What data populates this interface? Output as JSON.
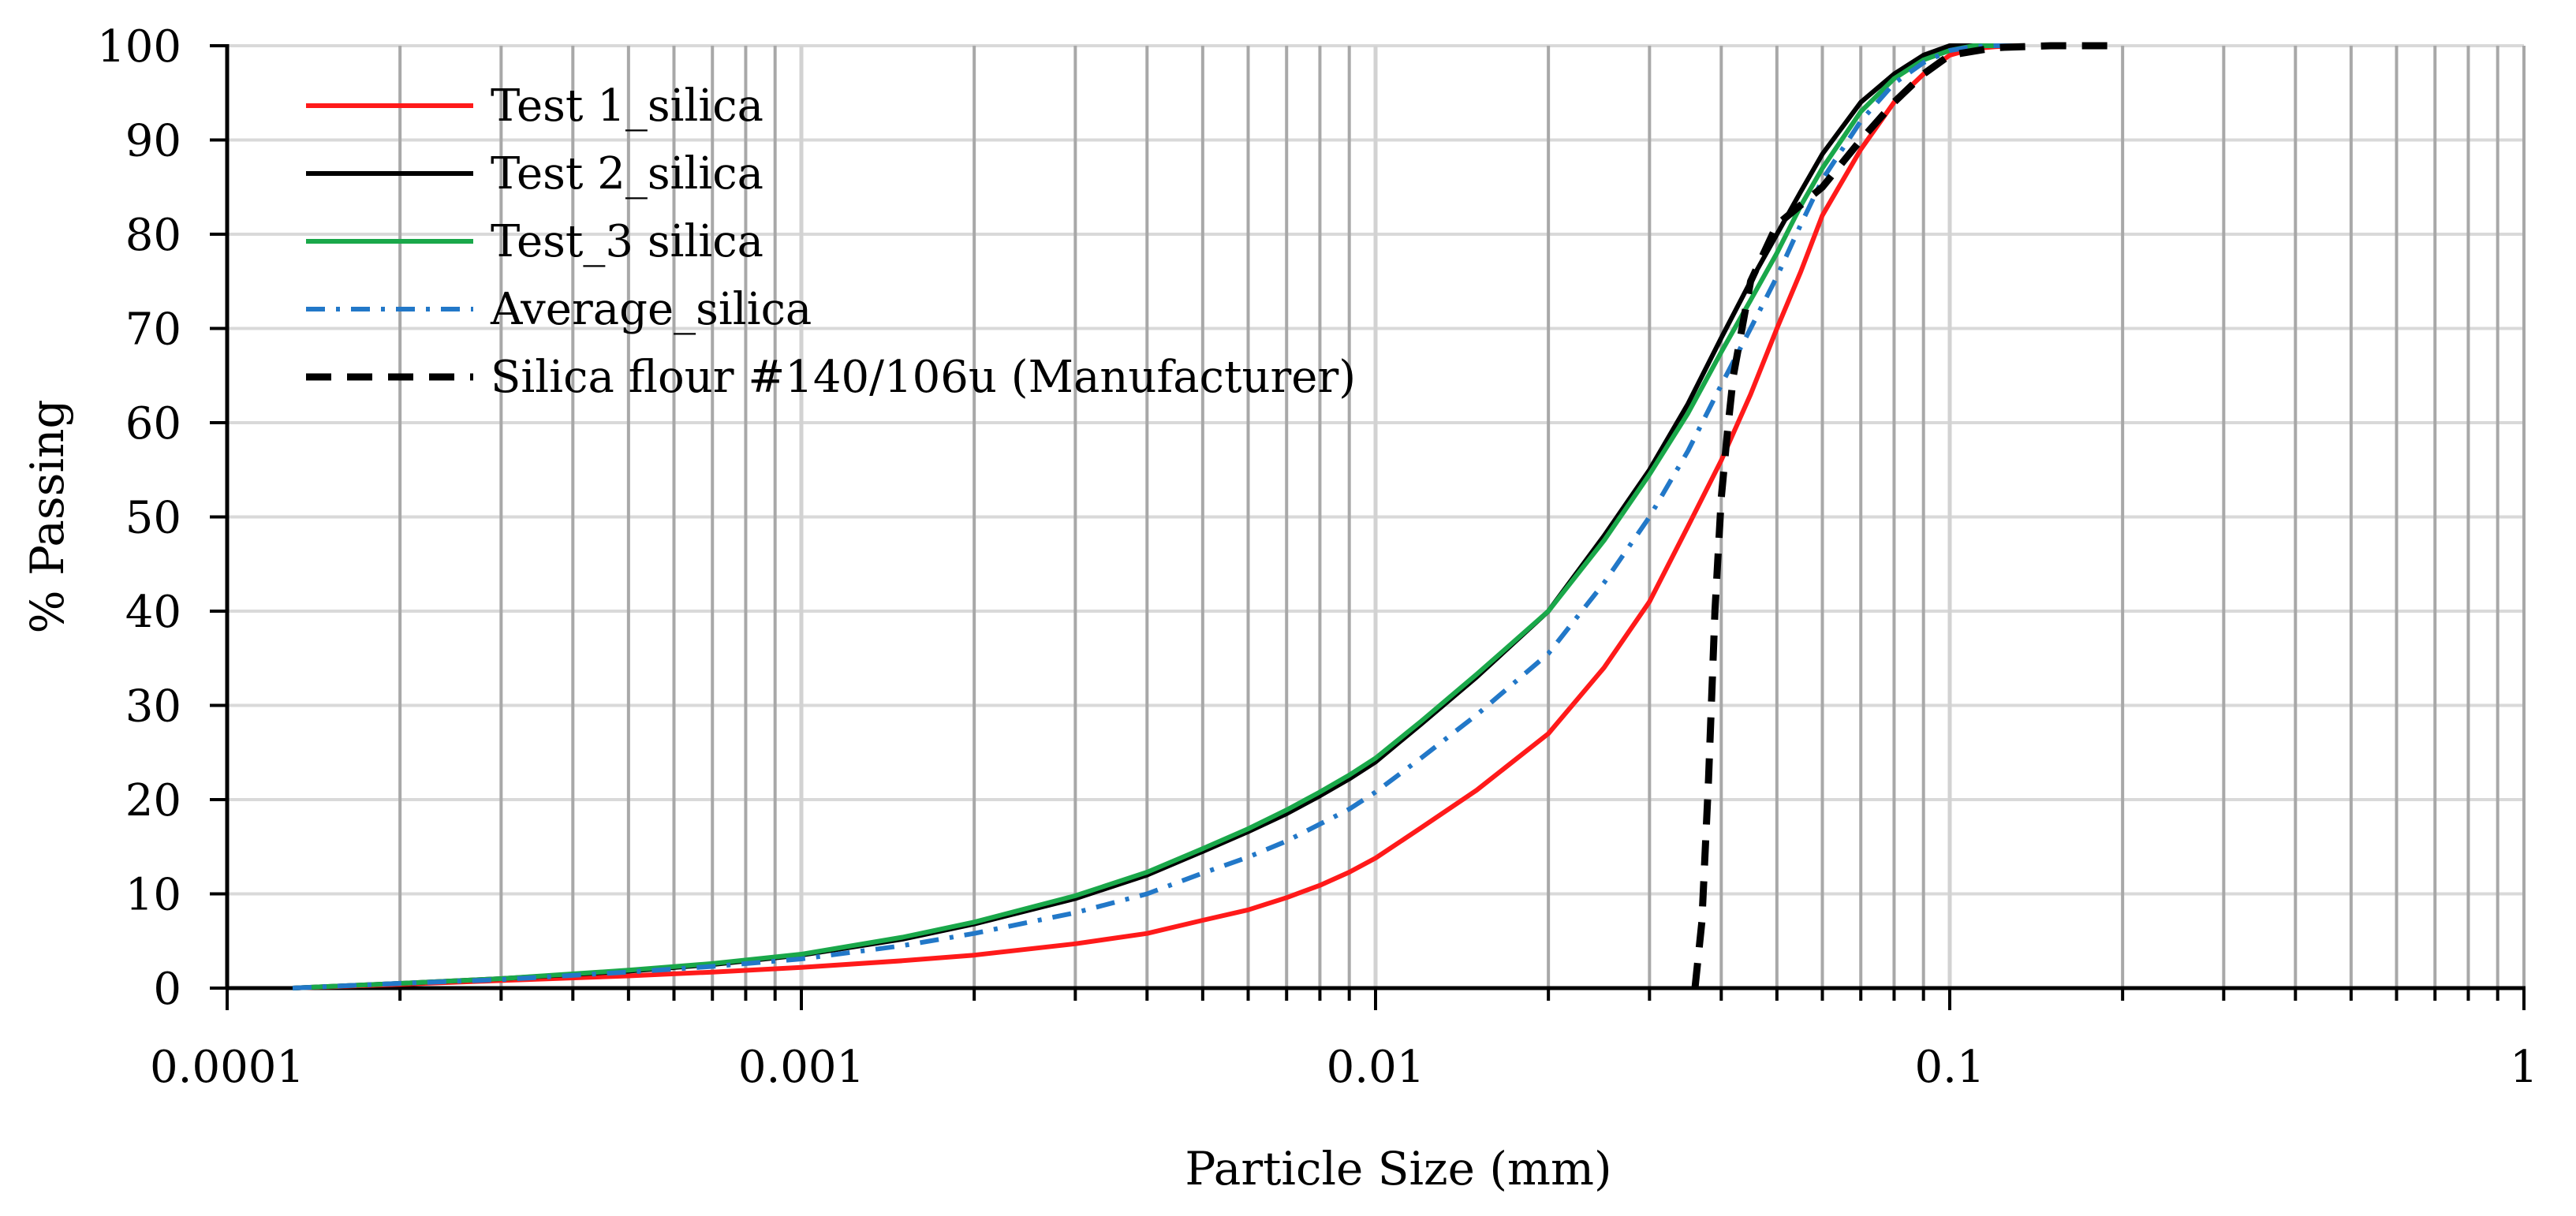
{
  "chart_data": {
    "type": "line",
    "title": "",
    "xlabel": "Particle Size (mm)",
    "ylabel": "% Passing",
    "xscale": "log",
    "xlim": [
      0.0001,
      1
    ],
    "ylim": [
      0,
      100
    ],
    "x_tick_labels": [
      "0.0001",
      "0.001",
      "0.01",
      "0.1",
      "1"
    ],
    "y_tick_labels": [
      "0",
      "10",
      "20",
      "30",
      "40",
      "50",
      "60",
      "70",
      "80",
      "90",
      "100"
    ],
    "grid": true,
    "legend_position": "top-left",
    "colors": {
      "test1": "#ff1a1a",
      "test2": "#000000",
      "test3": "#1aa84a",
      "average": "#2278c8",
      "manufacturer": "#000000"
    },
    "series": [
      {
        "key": "test1",
        "name": "Test 1_silica",
        "style": "solid",
        "x": [
          0.00013,
          0.0002,
          0.0003,
          0.0005,
          0.0007,
          0.001,
          0.0015,
          0.002,
          0.003,
          0.004,
          0.005,
          0.006,
          0.007,
          0.008,
          0.009,
          0.01,
          0.012,
          0.015,
          0.02,
          0.025,
          0.03,
          0.035,
          0.04,
          0.045,
          0.05,
          0.055,
          0.06,
          0.07,
          0.08,
          0.09,
          0.1,
          0.11,
          0.12,
          0.13
        ],
        "y": [
          0,
          0.4,
          0.8,
          1.3,
          1.7,
          2.2,
          2.9,
          3.5,
          4.7,
          5.8,
          7.2,
          8.3,
          9.6,
          10.9,
          12.3,
          13.8,
          17,
          21,
          27,
          34,
          41,
          49,
          56,
          63,
          70,
          76,
          82,
          89,
          94,
          97,
          99,
          99.7,
          99.9,
          100
        ]
      },
      {
        "key": "test2",
        "name": "Test 2_silica",
        "style": "solid",
        "x": [
          0.00013,
          0.0002,
          0.0003,
          0.0005,
          0.0007,
          0.001,
          0.0015,
          0.002,
          0.003,
          0.004,
          0.005,
          0.006,
          0.007,
          0.008,
          0.009,
          0.01,
          0.012,
          0.015,
          0.02,
          0.025,
          0.03,
          0.035,
          0.04,
          0.045,
          0.05,
          0.055,
          0.06,
          0.07,
          0.08,
          0.09,
          0.1,
          0.11,
          0.12
        ],
        "y": [
          0,
          0.5,
          1,
          1.8,
          2.5,
          3.5,
          5.2,
          6.8,
          9.5,
          12,
          14.5,
          16.6,
          18.5,
          20.4,
          22.2,
          24,
          28,
          33,
          40,
          48,
          55,
          62,
          69,
          75,
          80,
          84.5,
          88.5,
          94,
          97,
          99,
          100,
          100,
          100
        ]
      },
      {
        "key": "test3",
        "name": "Test_3 silica",
        "style": "solid",
        "x": [
          0.00013,
          0.0002,
          0.0003,
          0.0005,
          0.0007,
          0.001,
          0.0015,
          0.002,
          0.003,
          0.004,
          0.005,
          0.006,
          0.007,
          0.008,
          0.009,
          0.01,
          0.012,
          0.015,
          0.02,
          0.025,
          0.03,
          0.035,
          0.04,
          0.045,
          0.05,
          0.055,
          0.06,
          0.07,
          0.08,
          0.09,
          0.1,
          0.11,
          0.12
        ],
        "y": [
          0,
          0.5,
          1,
          1.9,
          2.6,
          3.6,
          5.4,
          7,
          9.8,
          12.3,
          14.8,
          16.9,
          18.9,
          20.8,
          22.6,
          24.4,
          28.3,
          33.3,
          40,
          47.5,
          54.5,
          61,
          67.5,
          73,
          78,
          83,
          87,
          93,
          96.5,
          98.5,
          99.5,
          100,
          100
        ]
      },
      {
        "key": "average",
        "name": "Average_silica",
        "style": "dashdot",
        "x": [
          0.00013,
          0.0002,
          0.0003,
          0.0005,
          0.0007,
          0.001,
          0.0015,
          0.002,
          0.003,
          0.004,
          0.005,
          0.006,
          0.007,
          0.008,
          0.009,
          0.01,
          0.012,
          0.015,
          0.02,
          0.025,
          0.03,
          0.035,
          0.04,
          0.045,
          0.05,
          0.055,
          0.06,
          0.07,
          0.08,
          0.09,
          0.1,
          0.11,
          0.12,
          0.13
        ],
        "y": [
          0,
          0.5,
          0.9,
          1.7,
          2.3,
          3.1,
          4.5,
          5.8,
          8,
          10,
          12.2,
          13.9,
          15.6,
          17.4,
          19,
          20.8,
          24.4,
          29,
          35.5,
          43,
          50,
          57,
          64,
          70,
          75.5,
          81,
          85.8,
          92,
          96,
          98.2,
          99.5,
          99.9,
          100,
          100
        ]
      },
      {
        "key": "manufacturer",
        "name": "Silica flour #140/106u (Manufacturer)",
        "style": "dashed",
        "x": [
          0.036,
          0.037,
          0.038,
          0.039,
          0.04,
          0.041,
          0.042,
          0.045,
          0.05,
          0.06,
          0.07,
          0.08,
          0.09,
          0.1,
          0.12,
          0.15,
          0.2
        ],
        "y": [
          0,
          7,
          22,
          40,
          52,
          59,
          65,
          75,
          81,
          85,
          90,
          94,
          97,
          99,
          99.8,
          100,
          100
        ]
      }
    ]
  }
}
